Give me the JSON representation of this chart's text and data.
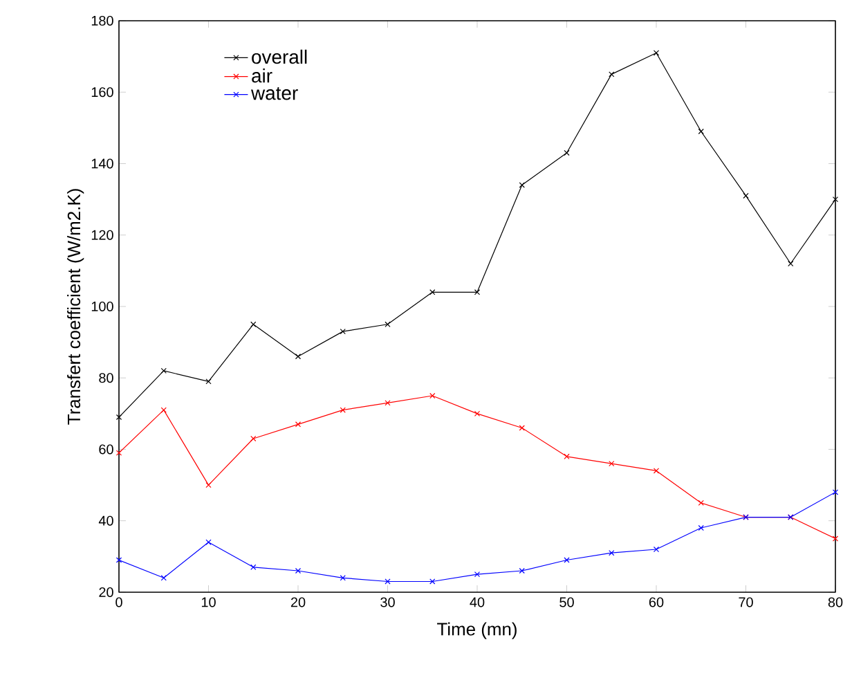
{
  "chart_data": {
    "type": "line",
    "xlabel": "Time (mn)",
    "ylabel": "Transfert coefficient (W/m2.K)",
    "x": [
      0,
      5,
      10,
      15,
      20,
      25,
      30,
      35,
      40,
      45,
      50,
      55,
      60,
      65,
      70,
      75,
      80
    ],
    "series": [
      {
        "name": "overall",
        "color": "#000000",
        "values": [
          69,
          82,
          79,
          95,
          86,
          93,
          95,
          104,
          104,
          134,
          143,
          165,
          171,
          149,
          131,
          112,
          130
        ]
      },
      {
        "name": "air",
        "color": "#ff0000",
        "values": [
          59,
          71,
          50,
          63,
          67,
          71,
          73,
          75,
          70,
          66,
          58,
          56,
          54,
          45,
          41,
          41,
          35
        ]
      },
      {
        "name": "water",
        "color": "#0000ff",
        "values": [
          29,
          24,
          34,
          27,
          26,
          24,
          23,
          23,
          25,
          26,
          29,
          31,
          32,
          38,
          41,
          41,
          48
        ]
      }
    ],
    "xlim": [
      0,
      80
    ],
    "xticks": [
      0,
      10,
      20,
      30,
      40,
      50,
      60,
      70,
      80
    ],
    "ylim": [
      20,
      180
    ],
    "yticks": [
      20,
      40,
      60,
      80,
      100,
      120,
      140,
      160,
      180
    ],
    "grid": false,
    "legend": "top left",
    "marker": "cross",
    "line_style": "solid"
  }
}
